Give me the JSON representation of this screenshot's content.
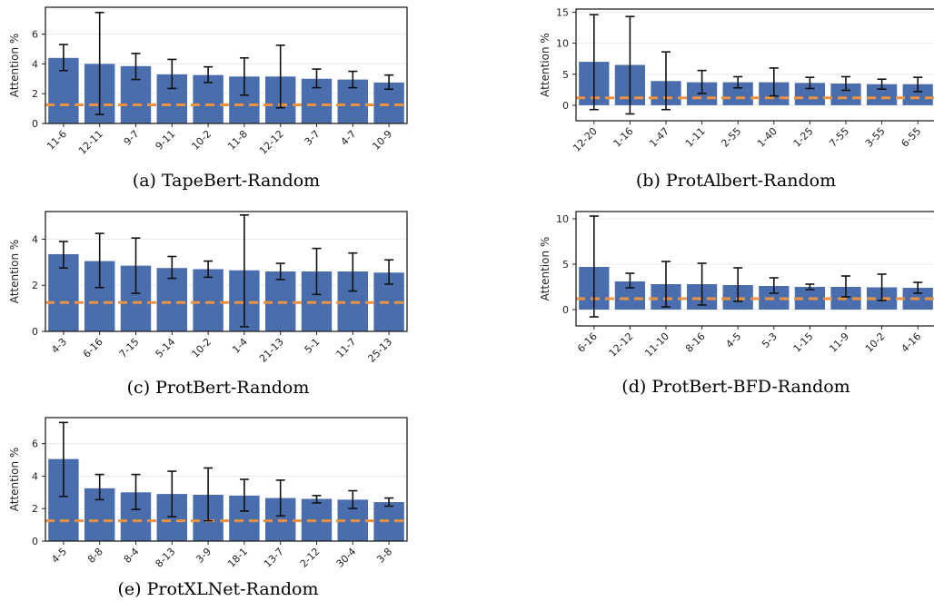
{
  "chart_data": [
    {
      "type": "bar",
      "caption": "(a) TapeBert-Random",
      "ylabel": "Attention %",
      "ylim": [
        0,
        7.8
      ],
      "yticks": [
        0,
        2,
        4,
        6
      ],
      "categories": [
        "11-6",
        "12-11",
        "9-7",
        "9-11",
        "10-2",
        "11-8",
        "12-12",
        "3-7",
        "4-7",
        "10-9"
      ],
      "values": [
        4.4,
        4.0,
        3.85,
        3.3,
        3.25,
        3.15,
        3.15,
        3.0,
        2.95,
        2.75
      ],
      "err_low": [
        3.55,
        0.6,
        2.95,
        2.35,
        2.75,
        1.9,
        1.05,
        2.4,
        2.4,
        2.3
      ],
      "err_high": [
        5.3,
        7.45,
        4.7,
        4.3,
        3.8,
        4.4,
        5.25,
        3.65,
        3.5,
        3.25
      ],
      "baseline": 1.25
    },
    {
      "type": "bar",
      "caption": "(b) ProtAlbert-Random",
      "ylabel": "Attention %",
      "ylim": [
        -2.5,
        15.5
      ],
      "yticks": [
        0,
        5,
        10,
        15
      ],
      "categories": [
        "12-20",
        "1-16",
        "1-47",
        "1-11",
        "2-55",
        "1-40",
        "1-25",
        "7-55",
        "3-55",
        "6-55"
      ],
      "values": [
        7.0,
        6.5,
        3.9,
        3.7,
        3.7,
        3.7,
        3.6,
        3.5,
        3.4,
        3.4
      ],
      "err_low": [
        -0.7,
        -1.4,
        -0.7,
        1.9,
        2.8,
        1.5,
        2.7,
        2.4,
        2.6,
        2.2
      ],
      "err_high": [
        14.6,
        14.3,
        8.6,
        5.6,
        4.6,
        6.0,
        4.5,
        4.6,
        4.2,
        4.5
      ],
      "baseline": 1.2
    },
    {
      "type": "bar",
      "caption": "(c) ProtBert-Random",
      "ylabel": "Attention %",
      "ylim": [
        0,
        5.2
      ],
      "yticks": [
        0,
        2,
        4
      ],
      "categories": [
        "4-3",
        "6-16",
        "7-15",
        "5-14",
        "10-2",
        "1-4",
        "21-13",
        "5-1",
        "11-7",
        "25-13"
      ],
      "values": [
        3.35,
        3.05,
        2.85,
        2.75,
        2.7,
        2.65,
        2.6,
        2.6,
        2.6,
        2.55
      ],
      "err_low": [
        2.75,
        1.9,
        1.65,
        2.3,
        2.35,
        0.2,
        2.25,
        1.6,
        1.75,
        2.05
      ],
      "err_high": [
        3.9,
        4.25,
        4.05,
        3.25,
        3.05,
        5.05,
        2.95,
        3.6,
        3.4,
        3.1
      ],
      "baseline": 1.25
    },
    {
      "type": "bar",
      "caption": "(d) ProtBert-BFD-Random",
      "ylabel": "Attention %",
      "ylim": [
        -1.8,
        10.8
      ],
      "yticks": [
        0,
        5,
        10
      ],
      "categories": [
        "6-16",
        "12-12",
        "11-10",
        "8-16",
        "4-5",
        "5-3",
        "1-15",
        "11-9",
        "10-2",
        "4-16"
      ],
      "values": [
        4.7,
        3.1,
        2.8,
        2.8,
        2.7,
        2.6,
        2.5,
        2.5,
        2.45,
        2.4
      ],
      "err_low": [
        -0.8,
        2.4,
        0.3,
        0.5,
        0.9,
        1.8,
        2.2,
        1.4,
        1.0,
        1.8
      ],
      "err_high": [
        10.3,
        4.0,
        5.3,
        5.1,
        4.6,
        3.5,
        2.8,
        3.7,
        3.9,
        3.0
      ],
      "baseline": 1.2
    },
    {
      "type": "bar",
      "caption": "(e) ProtXLNet-Random",
      "ylabel": "Attention %",
      "ylim": [
        0,
        7.6
      ],
      "yticks": [
        0,
        2,
        4,
        6
      ],
      "categories": [
        "4-5",
        "8-8",
        "8-4",
        "8-13",
        "3-9",
        "18-1",
        "13-7",
        "2-12",
        "30-4",
        "3-8"
      ],
      "values": [
        5.05,
        3.25,
        3.0,
        2.9,
        2.85,
        2.8,
        2.65,
        2.6,
        2.55,
        2.4
      ],
      "err_low": [
        2.75,
        2.55,
        1.95,
        1.5,
        1.25,
        1.85,
        1.55,
        2.35,
        2.0,
        2.15
      ],
      "err_high": [
        7.3,
        4.1,
        4.1,
        4.3,
        4.5,
        3.8,
        3.75,
        2.8,
        3.1,
        2.65
      ],
      "baseline": 1.25
    }
  ],
  "colors": {
    "bar": "#4a6ead",
    "baseline": "#f0913e",
    "grid": "#ececec",
    "error": "#111111",
    "axis": "#222222"
  }
}
